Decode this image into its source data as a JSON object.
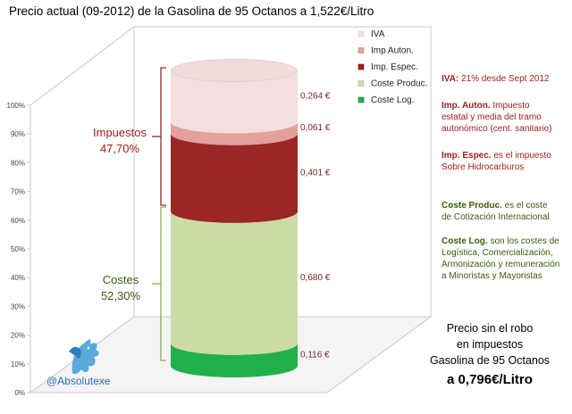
{
  "chart_data": {
    "type": "bar",
    "subtype": "stacked-cylinder-3d",
    "title": "Precio actual  (09-2012) de la Gasolina  de 95 Octanos  a 1,522€/Litro",
    "ylim": [
      0,
      100
    ],
    "yticks": [
      "0%",
      "10%",
      "20%",
      "30%",
      "40%",
      "50%",
      "60%",
      "70%",
      "80%",
      "90%",
      "100%"
    ],
    "grid": false,
    "legend_position": "inside-top-right",
    "series": [
      {
        "name": "Coste Log.",
        "value": 0.116,
        "label": "0,116 €",
        "color": "#22b04a",
        "dark": "#13803a"
      },
      {
        "name": "Coste Produc.",
        "value": 0.68,
        "label": "0,680 €",
        "color": "#cbdca6",
        "dark": "#aec486"
      },
      {
        "name": "Imp. Espec.",
        "value": 0.401,
        "label": "0,401 €",
        "color": "#9a2626",
        "dark": "#7a1717"
      },
      {
        "name": "Imp Auton.",
        "value": 0.061,
        "label": "0,061 €",
        "color": "#e3a09c",
        "dark": "#c98884"
      },
      {
        "name": "IVA",
        "value": 0.264,
        "label": "0,264 €",
        "color": "#f5dedf",
        "dark": "#e6c8c9"
      }
    ],
    "groups": [
      {
        "name": "Impuestos",
        "percent": "47,70%"
      },
      {
        "name": "Costes",
        "percent": "52,30%"
      }
    ]
  },
  "notes": [
    {
      "label": "IVA:",
      "text": " 21% desde Sept 2012",
      "lines": [
        "IVA: 21% desde Sept 2012"
      ],
      "color": "#a02020"
    },
    {
      "label": "Imp. Auton.",
      "lines": [
        "Imp. Auton. Impuesto",
        "estatal y media del tramo",
        "autonómico (cent. sanitario)"
      ],
      "color": "#a02020"
    },
    {
      "label": "Imp. Espec.",
      "lines": [
        "Imp. Espec. es el impuesto",
        "Sobre Hidrocarburos"
      ],
      "color": "#a02020"
    },
    {
      "label": "Coste Produc.",
      "lines": [
        "Coste Produc. es el coste",
        "de Cotización Internacional"
      ],
      "color": "#3a5a10"
    },
    {
      "label": "Coste Log.",
      "lines": [
        "Coste Log. son los costes de",
        "Logística, Comercialización,",
        "Armonización y remuneración",
        "a Minoristas y Mayoristas"
      ],
      "color": "#3a5a10"
    }
  ],
  "price_box": {
    "line1": "Precio sin el robo",
    "line2": "en impuestos",
    "line3": "Gasolina  de 95 Octanos",
    "line4": "a 0,796€/Litro"
  },
  "brand": "@Absolutexe"
}
